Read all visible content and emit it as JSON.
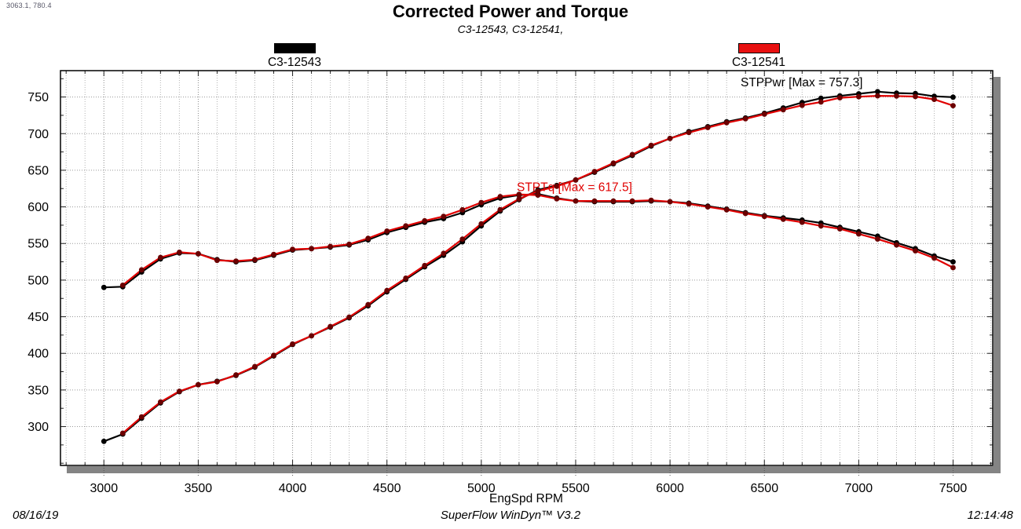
{
  "cursor_readout": "3063.1, 780.4",
  "title": "Corrected Power and Torque",
  "subtitle": "C3-12543, C3-12541,",
  "legend": [
    {
      "label": "C3-12543",
      "color": "#000000"
    },
    {
      "label": "C3-12541",
      "color": "#e81010"
    }
  ],
  "footer": {
    "date": "08/16/19",
    "app": "SuperFlow WinDyn™ V3.2",
    "time": "12:14:48"
  },
  "chart_data": {
    "type": "line",
    "title": "Corrected Power and Torque",
    "xlabel": "EngSpd RPM",
    "ylabel": "",
    "x_range": [
      2770,
      7710
    ],
    "y_range": [
      247,
      786
    ],
    "x_major_ticks": [
      3000,
      3500,
      4000,
      4500,
      5000,
      5500,
      6000,
      6500,
      7000,
      7500
    ],
    "x_minor_step": 100,
    "y_major_ticks": [
      300,
      350,
      400,
      450,
      500,
      550,
      600,
      650,
      700,
      750
    ],
    "y_minor_step": 25,
    "grid": true,
    "annotations": [
      {
        "text": "STPPwr [Max = 757.3]",
        "x": 6374,
        "y": 770,
        "color": "#000000"
      },
      {
        "text": "STPTq [Max = 617.5]",
        "x": 5188,
        "y": 627,
        "color": "#e00000"
      }
    ],
    "series": [
      {
        "id": "stptq-c3-12543",
        "name": "C3-12543 STPTq",
        "color": "#000000",
        "marker_color": "#000000",
        "x": [
          3000,
          3100,
          3200,
          3300,
          3400,
          3500,
          3600,
          3700,
          3800,
          3900,
          4000,
          4100,
          4200,
          4300,
          4400,
          4500,
          4600,
          4700,
          4800,
          4900,
          5000,
          5100,
          5200,
          5300,
          5400,
          5500,
          5600,
          5700,
          5800,
          5900,
          6000,
          6100,
          6200,
          6300,
          6400,
          6500,
          6600,
          6700,
          6800,
          6900,
          7000,
          7100,
          7200,
          7300,
          7400,
          7500
        ],
        "y": [
          490,
          491,
          511,
          529,
          537,
          536,
          528,
          525,
          527,
          534,
          541,
          543,
          545,
          548,
          555,
          565,
          572,
          579,
          584,
          592,
          603,
          612,
          616,
          617.5,
          612,
          608,
          607,
          607,
          607,
          608,
          607,
          605,
          601,
          597,
          592,
          588,
          585,
          582,
          578,
          572,
          566,
          560,
          551,
          543,
          533,
          525
        ]
      },
      {
        "id": "stppwr-c3-12543",
        "name": "C3-12543 STPPwr",
        "color": "#000000",
        "marker_color": "#000000",
        "x": [
          3000,
          3100,
          3200,
          3300,
          3400,
          3500,
          3600,
          3700,
          3800,
          3900,
          4000,
          4100,
          4200,
          4300,
          4400,
          4500,
          4600,
          4700,
          4800,
          4900,
          5000,
          5100,
          5200,
          5300,
          5400,
          5500,
          5600,
          5700,
          5800,
          5900,
          6000,
          6100,
          6200,
          6300,
          6400,
          6500,
          6600,
          6700,
          6800,
          6900,
          7000,
          7100,
          7200,
          7300,
          7400,
          7500
        ],
        "y": [
          279.9,
          289.8,
          311.4,
          332.4,
          347.6,
          357.2,
          361.9,
          369.9,
          381.3,
          396.5,
          412.0,
          423.9,
          435.9,
          448.6,
          465.0,
          484.1,
          501.0,
          518.1,
          533.7,
          552.3,
          574.1,
          594.3,
          609.9,
          623.1,
          629.2,
          636.7,
          647.2,
          658.8,
          670.3,
          683.0,
          693.4,
          702.7,
          709.5,
          716.1,
          721.4,
          727.7,
          735.1,
          742.4,
          748.3,
          751.5,
          754.4,
          757.3,
          755.4,
          754.7,
          751.0,
          749.8
        ]
      },
      {
        "id": "stptq-c3-12541",
        "name": "C3-12541 STPTq",
        "color": "#e00000",
        "marker_color": "#6b0000",
        "x": [
          3100,
          3200,
          3300,
          3400,
          3500,
          3600,
          3700,
          3800,
          3900,
          4000,
          4100,
          4200,
          4300,
          4400,
          4500,
          4600,
          4700,
          4800,
          4900,
          5000,
          5100,
          5200,
          5300,
          5400,
          5500,
          5600,
          5700,
          5800,
          5900,
          6000,
          6100,
          6200,
          6300,
          6400,
          6500,
          6600,
          6700,
          6800,
          6900,
          7000,
          7100,
          7200,
          7300,
          7400,
          7500
        ],
        "y": [
          493,
          514,
          531,
          538,
          536,
          527,
          526,
          528,
          535,
          542,
          543,
          546,
          549,
          557,
          567,
          574,
          581,
          587,
          596,
          606,
          614,
          617,
          616,
          611,
          608,
          608,
          608,
          608,
          609,
          607,
          604,
          600,
          596,
          591,
          587,
          583,
          579,
          574,
          570,
          563,
          556,
          548,
          540,
          530,
          517
        ]
      },
      {
        "id": "stppwr-c3-12541",
        "name": "C3-12541 STPPwr",
        "color": "#e00000",
        "marker_color": "#6b0000",
        "x": [
          3100,
          3200,
          3300,
          3400,
          3500,
          3600,
          3700,
          3800,
          3900,
          4000,
          4100,
          4200,
          4300,
          4400,
          4500,
          4600,
          4700,
          4800,
          4900,
          5000,
          5100,
          5200,
          5300,
          5400,
          5500,
          5600,
          5700,
          5800,
          5900,
          6000,
          6100,
          6200,
          6300,
          6400,
          6500,
          6600,
          6700,
          6800,
          6900,
          7000,
          7100,
          7200,
          7300,
          7400,
          7500
        ],
        "y": [
          291.0,
          313.2,
          333.6,
          348.3,
          357.2,
          361.2,
          370.6,
          382.0,
          397.3,
          412.8,
          423.9,
          436.7,
          449.5,
          466.6,
          485.8,
          502.7,
          519.9,
          536.5,
          556.0,
          576.9,
          596.2,
          610.9,
          621.6,
          628.2,
          636.7,
          648.3,
          659.8,
          671.4,
          684.1,
          693.4,
          701.5,
          708.3,
          714.9,
          720.2,
          726.5,
          732.6,
          738.6,
          743.1,
          748.9,
          750.4,
          751.6,
          751.3,
          750.6,
          746.8,
          738.2
        ]
      }
    ]
  }
}
